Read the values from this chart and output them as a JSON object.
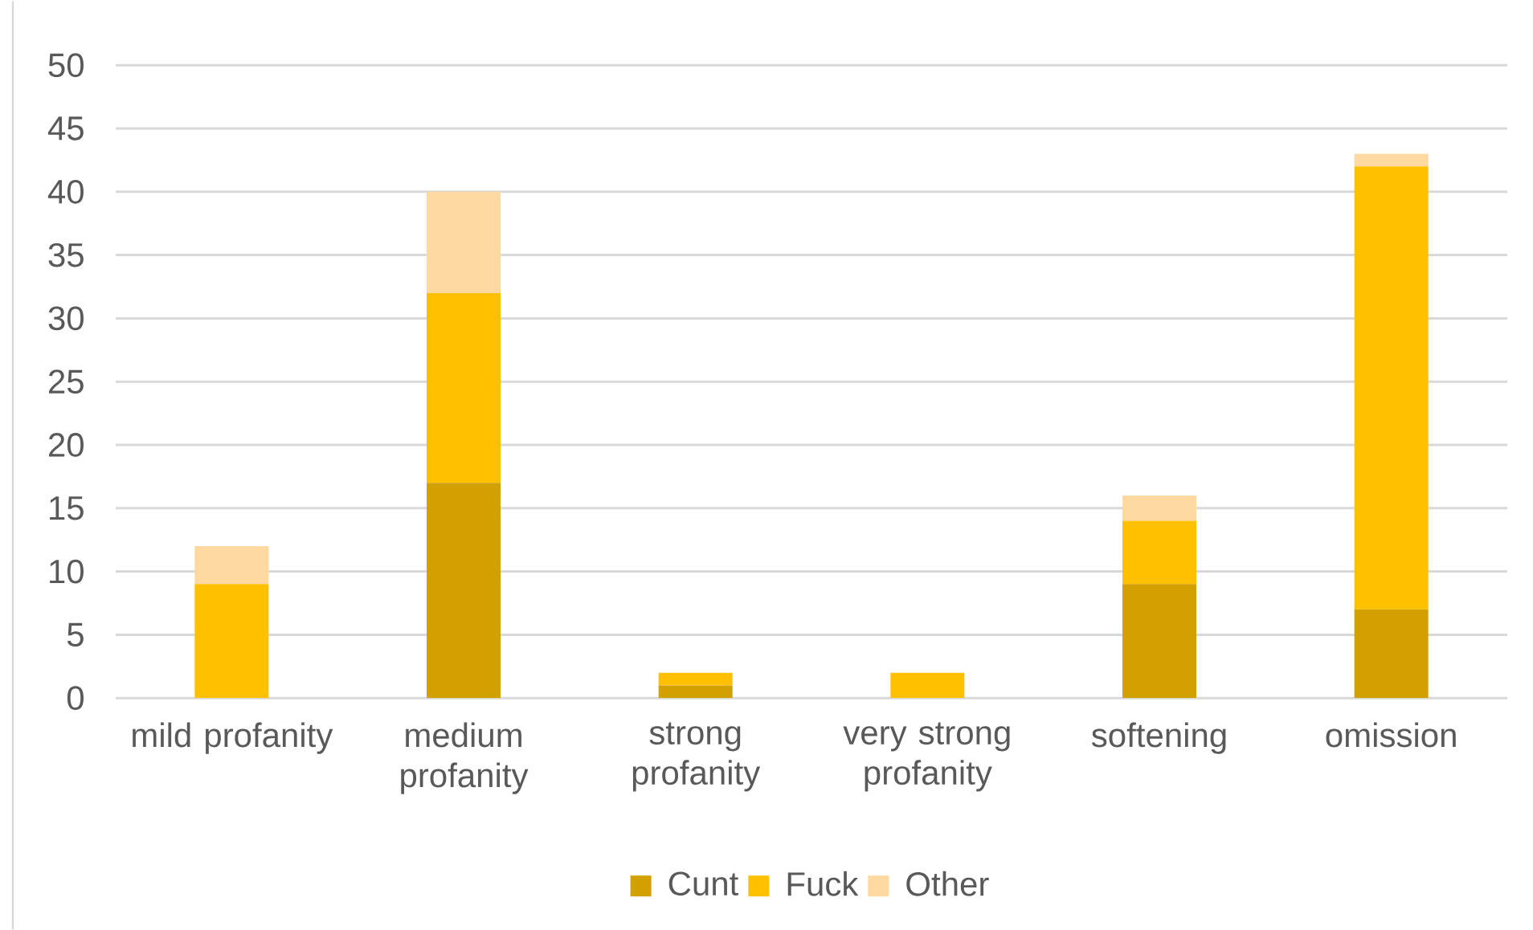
{
  "chart_data": {
    "type": "bar",
    "stacked": true,
    "categories": [
      "mild profanity",
      "medium profanity",
      "strong profanity",
      "very strong profanity",
      "softening",
      "omission"
    ],
    "series": [
      {
        "name": "Cunt",
        "color": "#d2a000",
        "values": [
          0,
          17,
          1,
          0,
          9,
          7
        ]
      },
      {
        "name": "Fuck",
        "color": "#ffc000",
        "values": [
          9,
          15,
          1,
          2,
          5,
          35
        ]
      },
      {
        "name": "Other",
        "color": "#ffd9a0",
        "values": [
          3,
          8,
          0,
          0,
          2,
          1
        ]
      }
    ],
    "ylim": [
      0,
      50
    ],
    "yticks": [
      0,
      5,
      10,
      15,
      20,
      25,
      30,
      35,
      40,
      45,
      50
    ],
    "grid": "y",
    "legend": "bottom"
  }
}
